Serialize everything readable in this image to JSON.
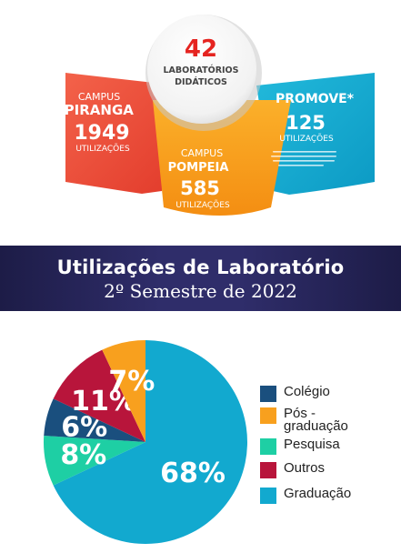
{
  "infographic": {
    "center": {
      "value": "42",
      "line1": "LABORATÓRIOS",
      "line2": "DIDÁTICOS"
    },
    "left": {
      "line1": "CAMPUS",
      "line2": "IPIRANGA",
      "value": "1949",
      "unit": "UTILIZAÇÕES"
    },
    "middle": {
      "line1": "CAMPUS",
      "line2": "POMPEIA",
      "value": "585",
      "unit": "UTILIZAÇÕES"
    },
    "right": {
      "line1": "PROMOVE*",
      "value": "125",
      "unit": "UTILIZAÇÕES"
    },
    "colors": {
      "left": "#ee4a36",
      "middle": "#f8a01e",
      "right": "#12a9cf",
      "accent": "#e52420"
    }
  },
  "banner": {
    "title": "Utilizações de Laboratório",
    "subtitle": "2º Semestre de 2022"
  },
  "chart_data": {
    "type": "pie",
    "start": "top-center, clockwise",
    "slices": [
      {
        "label": "Graduação",
        "value": 68,
        "display": "68%",
        "color": "#12a9cf"
      },
      {
        "label": "Pesquisa",
        "value": 8,
        "display": "8%",
        "color": "#1ecfa4"
      },
      {
        "label": "Colégio",
        "value": 6,
        "display": "6%",
        "color": "#1a4f7e"
      },
      {
        "label": "Outros",
        "value": 11,
        "display": "11%",
        "color": "#b8153b"
      },
      {
        "label": "Pós - graduação",
        "value": 7,
        "display": "7%",
        "color": "#f8a01e"
      }
    ],
    "legend": [
      {
        "label": "Colégio",
        "color": "#1a4f7e"
      },
      {
        "label": "Pós -\ngraduação",
        "color": "#f8a01e"
      },
      {
        "label": "Pesquisa",
        "color": "#1ecfa4"
      },
      {
        "label": "Outros",
        "color": "#b8153b"
      },
      {
        "label": "Graduação",
        "color": "#12a9cf"
      }
    ],
    "legend_position": "right"
  }
}
